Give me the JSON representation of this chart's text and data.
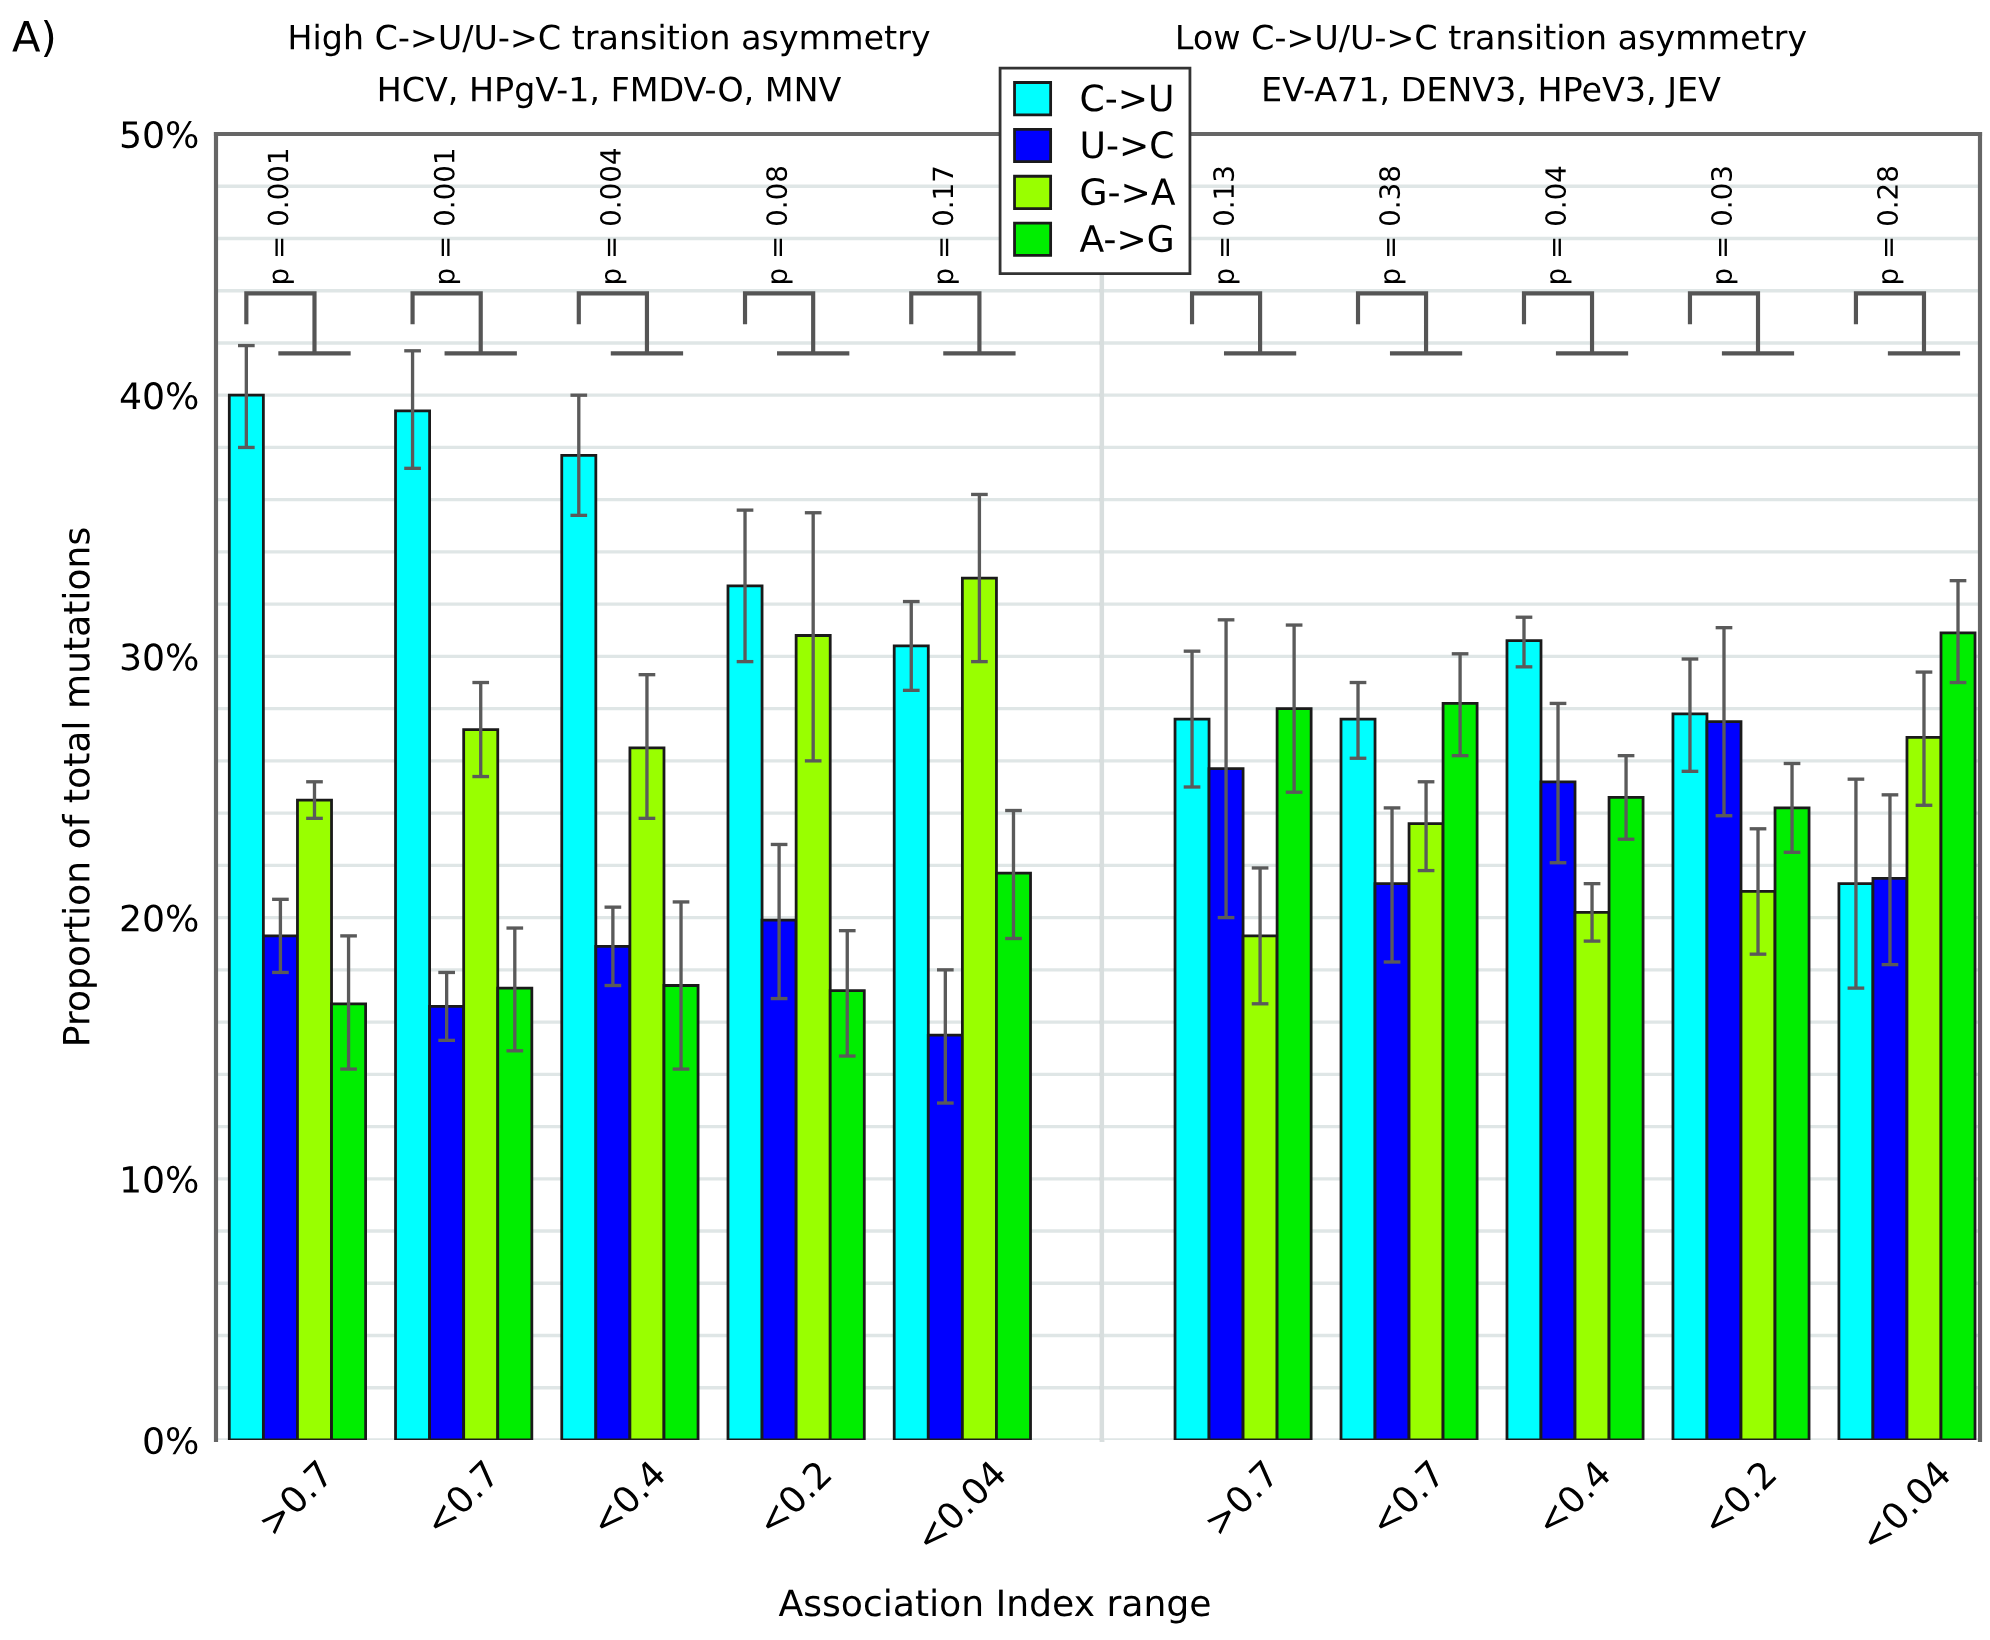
{
  "chart_data": [
    {
      "type": "bar",
      "title": "High C->U/U->C transition asymmetry",
      "subtitle": "HCV, HPgV-1, FMDV-O, MNV",
      "xlabel": "Association Index range",
      "ylabel": "Proportion of total mutations",
      "categories": [
        ">0.7",
        "<0.7",
        "<0.4",
        "<0.2",
        "<0.04"
      ],
      "series": [
        {
          "name": "C->U",
          "color": "#00ffff",
          "values": [
            40.0,
            39.4,
            37.7,
            32.7,
            30.4
          ],
          "errors": [
            [
              38.0,
              41.9
            ],
            [
              37.2,
              41.7
            ],
            [
              35.4,
              40.0
            ],
            [
              29.8,
              35.6
            ],
            [
              28.7,
              32.1
            ]
          ]
        },
        {
          "name": "U->C",
          "color": "#0000ff",
          "values": [
            19.3,
            16.6,
            18.9,
            19.9,
            15.5
          ],
          "errors": [
            [
              17.9,
              20.7
            ],
            [
              15.3,
              17.9
            ],
            [
              17.4,
              20.4
            ],
            [
              16.9,
              22.8
            ],
            [
              12.9,
              18.0
            ]
          ]
        },
        {
          "name": "G->A",
          "color": "#99ff00",
          "values": [
            24.5,
            27.2,
            26.5,
            30.8,
            33.0
          ],
          "errors": [
            [
              23.8,
              25.2
            ],
            [
              25.4,
              29.0
            ],
            [
              23.8,
              29.3
            ],
            [
              26.0,
              35.5
            ],
            [
              29.8,
              36.2
            ]
          ]
        },
        {
          "name": "A->G",
          "color": "#00ee00",
          "values": [
            16.7,
            17.3,
            17.4,
            17.2,
            21.7
          ],
          "errors": [
            [
              14.2,
              19.3
            ],
            [
              14.9,
              19.6
            ],
            [
              14.2,
              20.6
            ],
            [
              14.7,
              19.5
            ],
            [
              19.2,
              24.1
            ]
          ]
        }
      ],
      "ylim": [
        0,
        50
      ],
      "yticks": [
        {
          "value": 0,
          "label": "0%"
        },
        {
          "value": 2,
          "label": null
        },
        {
          "value": 4,
          "label": null
        },
        {
          "value": 6,
          "label": null
        },
        {
          "value": 8,
          "label": null
        },
        {
          "value": 10,
          "label": "10%"
        },
        {
          "value": 12,
          "label": null
        },
        {
          "value": 14,
          "label": null
        },
        {
          "value": 16,
          "label": null
        },
        {
          "value": 18,
          "label": null
        },
        {
          "value": 20,
          "label": "20%"
        },
        {
          "value": 22,
          "label": null
        },
        {
          "value": 24,
          "label": null
        },
        {
          "value": 26,
          "label": null
        },
        {
          "value": 28,
          "label": null
        },
        {
          "value": 30,
          "label": "30%"
        },
        {
          "value": 32,
          "label": null
        },
        {
          "value": 34,
          "label": null
        },
        {
          "value": 36,
          "label": null
        },
        {
          "value": 38,
          "label": null
        },
        {
          "value": 40,
          "label": "40%"
        },
        {
          "value": 42,
          "label": null
        },
        {
          "value": 44,
          "label": null
        },
        {
          "value": 46,
          "label": null
        },
        {
          "value": 48,
          "label": null
        },
        {
          "value": 50,
          "label": "50%"
        }
      ],
      "grid": "y",
      "legend": "top right",
      "annotations": [
        "A)",
        "p = 0.001",
        "p = 0.001",
        "p = 0.004",
        "p = 0.08",
        "p = 0.17"
      ]
    },
    {
      "type": "bar",
      "title": "Low C->U/U->C transition asymmetry",
      "subtitle": "EV-A71, DENV3, HPeV3, JEV",
      "categories": [
        ">0.7",
        "<0.7",
        "<0.4",
        "<0.2",
        "<0.04"
      ],
      "series": [
        {
          "color": "#00ffff",
          "values": [
            27.6,
            27.6,
            30.6,
            27.8,
            21.3
          ],
          "errors": [
            [
              25.0,
              30.2
            ],
            [
              26.1,
              29.0
            ],
            [
              29.6,
              31.5
            ],
            [
              25.6,
              29.9
            ],
            [
              17.3,
              25.3
            ]
          ]
        },
        {
          "color": "#0000ff",
          "values": [
            25.7,
            21.3,
            25.2,
            27.5,
            21.5
          ],
          "errors": [
            [
              20.0,
              31.4
            ],
            [
              18.3,
              24.2
            ],
            [
              22.1,
              28.2
            ],
            [
              23.9,
              31.1
            ],
            [
              18.2,
              24.7
            ]
          ]
        },
        {
          "color": "#99ff00",
          "values": [
            19.3,
            23.6,
            20.2,
            21.0,
            26.9
          ],
          "errors": [
            [
              16.7,
              21.9
            ],
            [
              21.8,
              25.2
            ],
            [
              19.1,
              21.3
            ],
            [
              18.6,
              23.4
            ],
            [
              24.3,
              29.4
            ]
          ]
        },
        {
          "color": "#00ee00",
          "values": [
            28.0,
            28.2,
            24.6,
            24.2,
            30.9
          ],
          "errors": [
            [
              24.8,
              31.2
            ],
            [
              26.2,
              30.1
            ],
            [
              23.0,
              26.2
            ],
            [
              22.5,
              25.9
            ],
            [
              29.0,
              32.9
            ]
          ]
        }
      ],
      "ylim": [
        0,
        50
      ],
      "yticks": [
        {
          "value": 0,
          "label": null
        },
        {
          "value": 2,
          "label": null
        },
        {
          "value": 4,
          "label": null
        },
        {
          "value": 6,
          "label": null
        },
        {
          "value": 8,
          "label": null
        },
        {
          "value": 10,
          "label": null
        },
        {
          "value": 12,
          "label": null
        },
        {
          "value": 14,
          "label": null
        },
        {
          "value": 16,
          "label": null
        },
        {
          "value": 18,
          "label": null
        },
        {
          "value": 20,
          "label": null
        },
        {
          "value": 22,
          "label": null
        },
        {
          "value": 24,
          "label": null
        },
        {
          "value": 26,
          "label": null
        },
        {
          "value": 28,
          "label": null
        },
        {
          "value": 30,
          "label": null
        },
        {
          "value": 32,
          "label": null
        },
        {
          "value": 34,
          "label": null
        },
        {
          "value": 36,
          "label": null
        },
        {
          "value": 38,
          "label": null
        },
        {
          "value": 40,
          "label": null
        },
        {
          "value": 42,
          "label": null
        },
        {
          "value": 44,
          "label": null
        },
        {
          "value": 46,
          "label": null
        },
        {
          "value": 48,
          "label": null
        },
        {
          "value": 50,
          "label": null
        }
      ],
      "grid": "y",
      "tick_labels": "x",
      "annotations": [
        "p = 0.13",
        "p = 0.38",
        "p = 0.04",
        "p = 0.03",
        "p = 0.28"
      ]
    }
  ]
}
